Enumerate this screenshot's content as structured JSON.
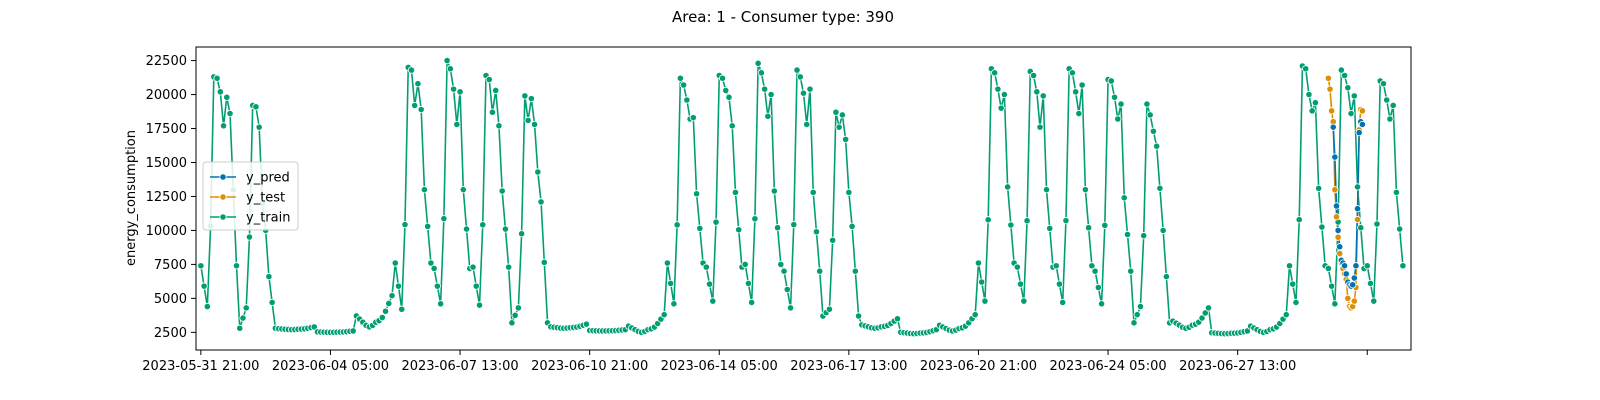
{
  "chart_data": {
    "type": "line",
    "title": "Area: 1 - Consumer type: 390",
    "xlabel": "",
    "ylabel": "energy_consumption",
    "x_ticks": [
      "2023-05-31 21:00",
      "2023-06-04 05:00",
      "2023-06-07 13:00",
      "2023-06-10 21:00",
      "2023-06-14 05:00",
      "2023-06-17 13:00",
      "2023-06-20 21:00",
      "2023-06-24 05:00",
      "2023-06-27 13:00",
      ""
    ],
    "xlim": [
      "2023-05-31 18:00",
      "2023-07-02 00:00"
    ],
    "y_ticks": [
      2500,
      5000,
      7500,
      10000,
      12500,
      15000,
      17500,
      20000,
      22500
    ],
    "ylim": [
      1200,
      23500
    ],
    "legend_position": "left",
    "markers": true,
    "grid": false,
    "series": [
      {
        "name": "y_pred",
        "color": "#0173b2",
        "x_start": "2023-06-30 00:00",
        "x_step_hours": 1,
        "values": [
          17600,
          15400,
          11800,
          10000,
          8800,
          7800,
          7600,
          7400,
          6800,
          6200,
          6000,
          5900,
          6000,
          6500,
          7400,
          11600,
          17200,
          18000,
          17800
        ]
      },
      {
        "name": "y_test",
        "color": "#de8f05",
        "x_start": "2023-06-29 21:00",
        "x_step_hours": 1,
        "values": [
          21200,
          20400,
          18800,
          18000,
          13000,
          11000,
          9500,
          8300,
          7600,
          7200,
          6800,
          6400,
          5000,
          4400,
          4300,
          4400,
          4800,
          5800,
          10800,
          17400,
          18900,
          18800
        ]
      },
      {
        "name": "y_train",
        "color": "#029e73",
        "x_start": "2023-05-31 21:00",
        "x_step_hours": 2,
        "days": [
          {
            "peaks": [
              21300,
              21200,
              20200,
              17700,
              19800,
              18600
            ],
            "trough": 4400,
            "night": 7400
          },
          {
            "peaks": [
              19200,
              19100,
              17600,
              12000,
              10000,
              6600
            ],
            "trough": 4300,
            "night": 2800
          },
          {
            "peaks": [],
            "trough": 2700,
            "night": 2900
          },
          {
            "peaks": [],
            "trough": 2500,
            "night": 2600
          },
          {
            "peaks": [],
            "trough": 2900,
            "night": 5200
          },
          {
            "peaks": [
              22000,
              21800,
              19200,
              20800,
              18900,
              13000
            ],
            "trough": 4200,
            "night": 7600
          },
          {
            "peaks": [
              22500,
              21900,
              20400,
              17800,
              20200,
              13000
            ],
            "trough": 4600,
            "night": 7200
          },
          {
            "peaks": [
              21400,
              21100,
              18700,
              20300,
              17700,
              12900
            ],
            "trough": 4500,
            "night": 7300
          },
          {
            "peaks": [
              19900,
              18100,
              19700,
              17800,
              14300,
              12100
            ],
            "trough": 4300,
            "night": 3200
          },
          {
            "peaks": [],
            "trough": 2800,
            "night": 3100
          },
          {
            "peaks": [],
            "trough": 2600,
            "night": 2700
          },
          {
            "peaks": [],
            "trough": 2500,
            "night": 3800
          },
          {
            "peaks": [
              21200,
              20700,
              19600,
              18200,
              18300,
              12700
            ],
            "trough": 4600,
            "night": 7600
          },
          {
            "peaks": [
              21400,
              21200,
              20300,
              19800,
              17700,
              12800
            ],
            "trough": 4800,
            "night": 7300
          },
          {
            "peaks": [
              22300,
              21600,
              20400,
              18400,
              20000,
              12900
            ],
            "trough": 4700,
            "night": 7500
          },
          {
            "peaks": [
              21800,
              21300,
              20100,
              17800,
              20400,
              12800
            ],
            "trough": 4300,
            "night": 7000
          },
          {
            "peaks": [
              18700,
              17600,
              18500,
              16700,
              12800,
              10300
            ],
            "trough": 4200,
            "night": 3700
          },
          {
            "peaks": [],
            "trough": 2800,
            "night": 3500
          },
          {
            "peaks": [],
            "trough": 2400,
            "night": 2700
          },
          {
            "peaks": [],
            "trough": 2600,
            "night": 3800
          },
          {
            "peaks": [
              21900,
              21600,
              20400,
              19000,
              20000,
              13200
            ],
            "trough": 4800,
            "night": 7600
          },
          {
            "peaks": [
              21700,
              21400,
              20200,
              17600,
              19900,
              13000
            ],
            "trough": 4800,
            "night": 7300
          },
          {
            "peaks": [
              21900,
              21600,
              20200,
              18600,
              20700,
              13000
            ],
            "trough": 4700,
            "night": 7400
          },
          {
            "peaks": [
              21100,
              21000,
              19800,
              18200,
              19300,
              12400
            ],
            "trough": 4600,
            "night": 7000
          },
          {
            "peaks": [
              19300,
              18500,
              17300,
              16200,
              13100,
              10000
            ],
            "trough": 4400,
            "night": 3200
          },
          {
            "peaks": [],
            "trough": 2800,
            "night": 4300
          },
          {
            "peaks": [],
            "trough": 2400,
            "night": 2600
          },
          {
            "peaks": [],
            "trough": 2500,
            "night": 3800
          },
          {
            "peaks": [
              22100,
              21900,
              20000,
              18800,
              19400,
              13100
            ],
            "trough": 4700,
            "night": 7400
          },
          {
            "peaks": [
              21800,
              21400,
              20500,
              18600,
              19900,
              13200
            ],
            "trough": 4600,
            "night": 7200
          },
          {
            "peaks": [
              21000,
              20800,
              19600,
              18200,
              19200,
              12800
            ],
            "trough": 4800,
            "night": 7400
          }
        ]
      }
    ]
  }
}
